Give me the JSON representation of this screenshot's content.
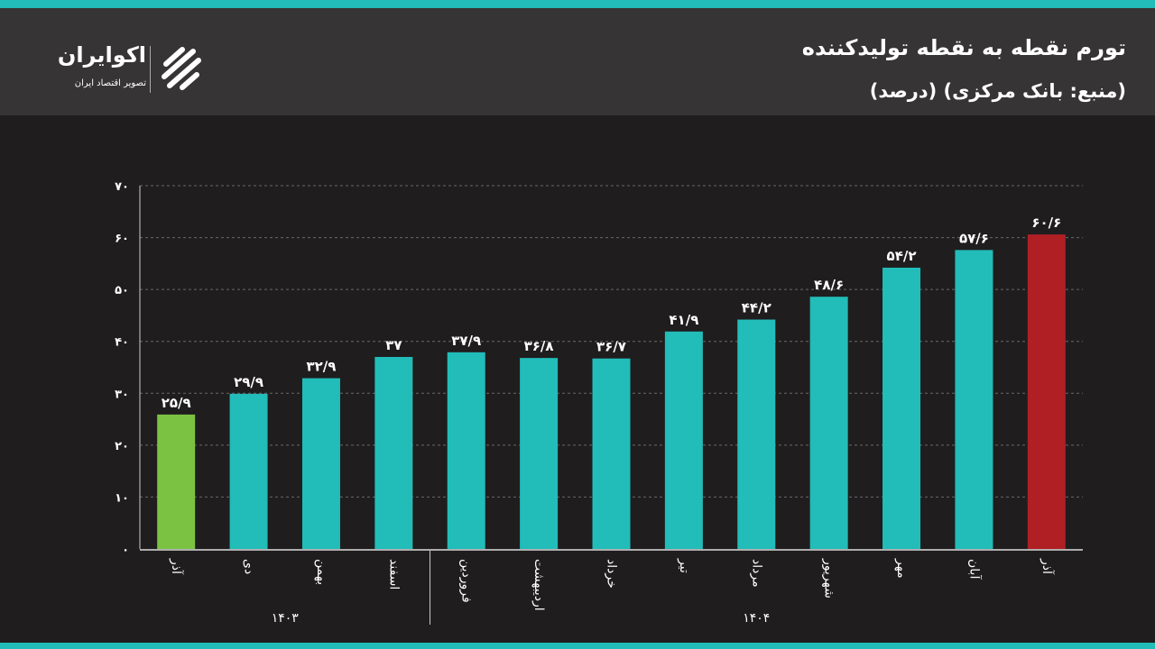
{
  "header": {
    "title": "تورم نقطه به نقطه تولیدکننده",
    "subtitle": "(منبع: بانک مرکزی) (درصد)"
  },
  "logo": {
    "name": "اکوایران",
    "tagline": "تصویر اقتصاد ایران"
  },
  "colors": {
    "teal": "#22bcb9",
    "green": "#7cc242",
    "red": "#b01f24"
  },
  "chart_data": {
    "type": "bar",
    "title": "تورم نقطه به نقطه تولیدکننده",
    "ylim": [
      0,
      70
    ],
    "yticks": [
      0,
      10,
      20,
      30,
      40,
      50,
      60,
      70
    ],
    "ytick_labels": [
      "۰",
      "۱۰",
      "۲۰",
      "۳۰",
      "۴۰",
      "۵۰",
      "۶۰",
      "۷۰"
    ],
    "grid": true,
    "categories": [
      "آذر",
      "دی",
      "بهمن",
      "اسفند",
      "فروردین",
      "اردیبهشت",
      "خرداد",
      "تیر",
      "مرداد",
      "شهریور",
      "مهر",
      "آبان",
      "آذر"
    ],
    "values": [
      25.9,
      29.9,
      32.9,
      37,
      37.9,
      36.8,
      36.7,
      41.9,
      44.2,
      48.6,
      54.2,
      57.6,
      60.6
    ],
    "value_labels": [
      "۲۵/۹",
      "۲۹/۹",
      "۳۲/۹",
      "۳۷",
      "۳۷/۹",
      "۳۶/۸",
      "۳۶/۷",
      "۴۱/۹",
      "۴۴/۲",
      "۴۸/۶",
      "۵۴/۲",
      "۵۷/۶",
      "۶۰/۶"
    ],
    "bar_colors": [
      "green",
      "teal",
      "teal",
      "teal",
      "teal",
      "teal",
      "teal",
      "teal",
      "teal",
      "teal",
      "teal",
      "teal",
      "red"
    ],
    "groups": [
      {
        "label": "۱۴۰۳",
        "count": 4
      },
      {
        "label": "۱۴۰۴",
        "count": 9
      }
    ]
  }
}
